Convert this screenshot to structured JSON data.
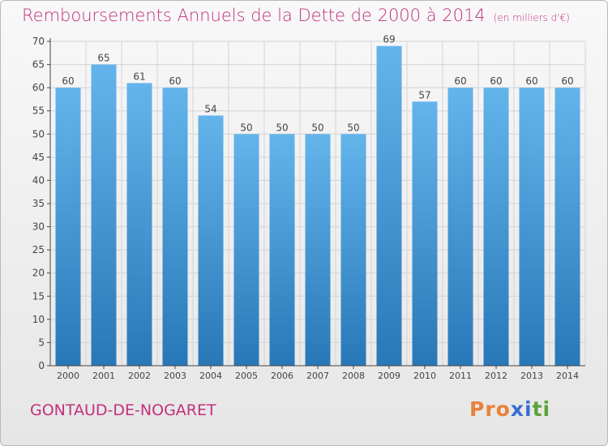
{
  "header": {
    "title": "Remboursements Annuels de la Dette de 2000 à 2014",
    "unit": "(en milliers d'€)"
  },
  "footer": {
    "commune": "GONTAUD-DE-NOGARET",
    "brand": "Proxiti",
    "brand_colors": [
      "#e8813a",
      "#e8813a",
      "#e8813a",
      "#3a6fd0",
      "#3a6fd0",
      "#5aa33a",
      "#5aa33a"
    ]
  },
  "colors": {
    "title": "#c2307e",
    "bar_light": "#64b4ec",
    "bar_dark": "#2878b8",
    "grid": "#d4d4d4",
    "axis": "#444444"
  },
  "chart_data": {
    "type": "bar",
    "title": "Remboursements Annuels de la Dette de 2000 à 2014",
    "xlabel": "",
    "ylabel": "",
    "ylim": [
      0,
      70
    ],
    "yticks": [
      0,
      5,
      10,
      15,
      20,
      25,
      30,
      35,
      40,
      45,
      50,
      55,
      60,
      65,
      70
    ],
    "grid": true,
    "categories": [
      "2000",
      "2001",
      "2002",
      "2003",
      "2004",
      "2005",
      "2006",
      "2007",
      "2008",
      "2009",
      "2010",
      "2011",
      "2012",
      "2013",
      "2014"
    ],
    "values": [
      60,
      65,
      61,
      60,
      54,
      50,
      50,
      50,
      50,
      69,
      57,
      60,
      60,
      60,
      60
    ]
  }
}
